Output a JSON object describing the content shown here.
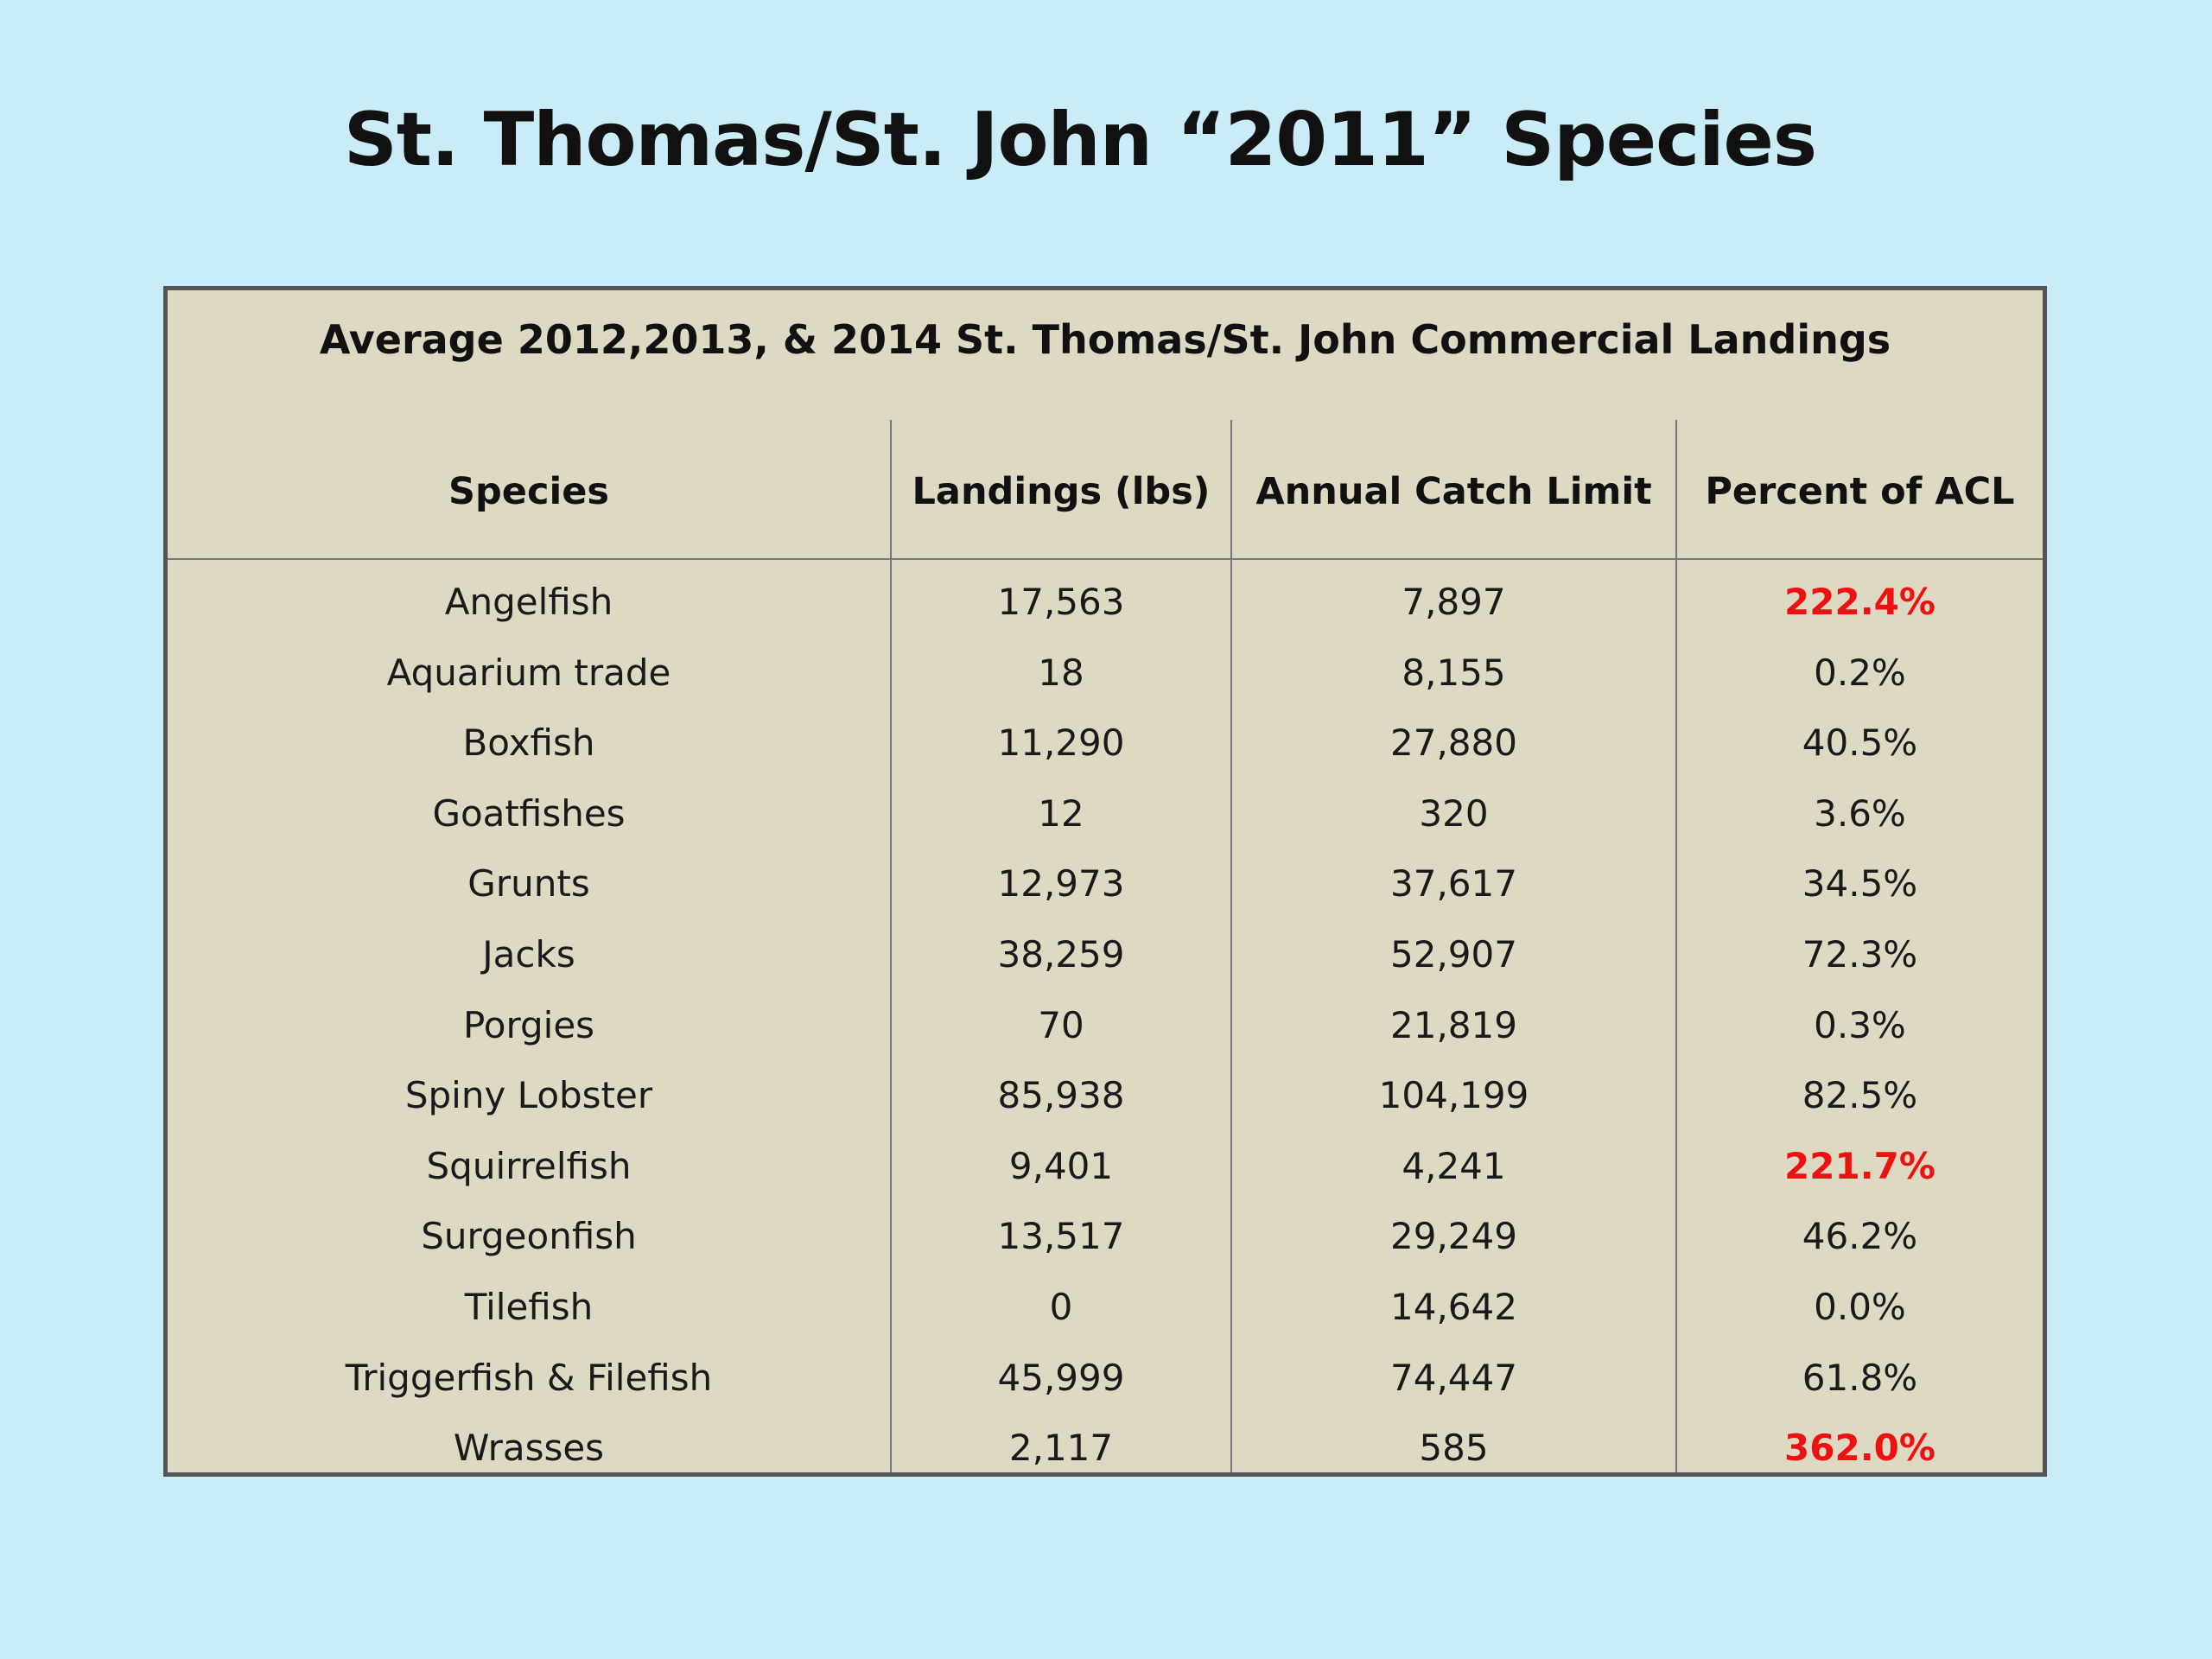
{
  "title": "St. Thomas/St. John “2011” Species",
  "table": {
    "caption": "Average 2012,2013, & 2014 St. Thomas/St. John Commercial Landings",
    "headers": {
      "species": "Species",
      "landings": "Landings (lbs)",
      "acl": "Annual Catch Limit",
      "percent": "Percent of ACL"
    },
    "highlight_color": "#ee1111",
    "rows": [
      {
        "species": "Angelfish",
        "landings": "17,563",
        "acl": "7,897",
        "percent": "222.4%",
        "exceeds": true
      },
      {
        "species": "Aquarium trade",
        "landings": "18",
        "acl": "8,155",
        "percent": "0.2%",
        "exceeds": false
      },
      {
        "species": "Boxfish",
        "landings": "11,290",
        "acl": "27,880",
        "percent": "40.5%",
        "exceeds": false
      },
      {
        "species": "Goatfishes",
        "landings": "12",
        "acl": "320",
        "percent": "3.6%",
        "exceeds": false
      },
      {
        "species": "Grunts",
        "landings": "12,973",
        "acl": "37,617",
        "percent": "34.5%",
        "exceeds": false
      },
      {
        "species": "Jacks",
        "landings": "38,259",
        "acl": "52,907",
        "percent": "72.3%",
        "exceeds": false
      },
      {
        "species": "Porgies",
        "landings": "70",
        "acl": "21,819",
        "percent": "0.3%",
        "exceeds": false
      },
      {
        "species": "Spiny Lobster",
        "landings": "85,938",
        "acl": "104,199",
        "percent": "82.5%",
        "exceeds": false
      },
      {
        "species": "Squirrelfish",
        "landings": "9,401",
        "acl": "4,241",
        "percent": "221.7%",
        "exceeds": true
      },
      {
        "species": "Surgeonfish",
        "landings": "13,517",
        "acl": "29,249",
        "percent": "46.2%",
        "exceeds": false
      },
      {
        "species": "Tilefish",
        "landings": "0",
        "acl": "14,642",
        "percent": "0.0%",
        "exceeds": false
      },
      {
        "species": "Triggerfish & Filefish",
        "landings": "45,999",
        "acl": "74,447",
        "percent": "61.8%",
        "exceeds": false
      },
      {
        "species": "Wrasses",
        "landings": "2,117",
        "acl": "585",
        "percent": "362.0%",
        "exceeds": true
      }
    ]
  }
}
